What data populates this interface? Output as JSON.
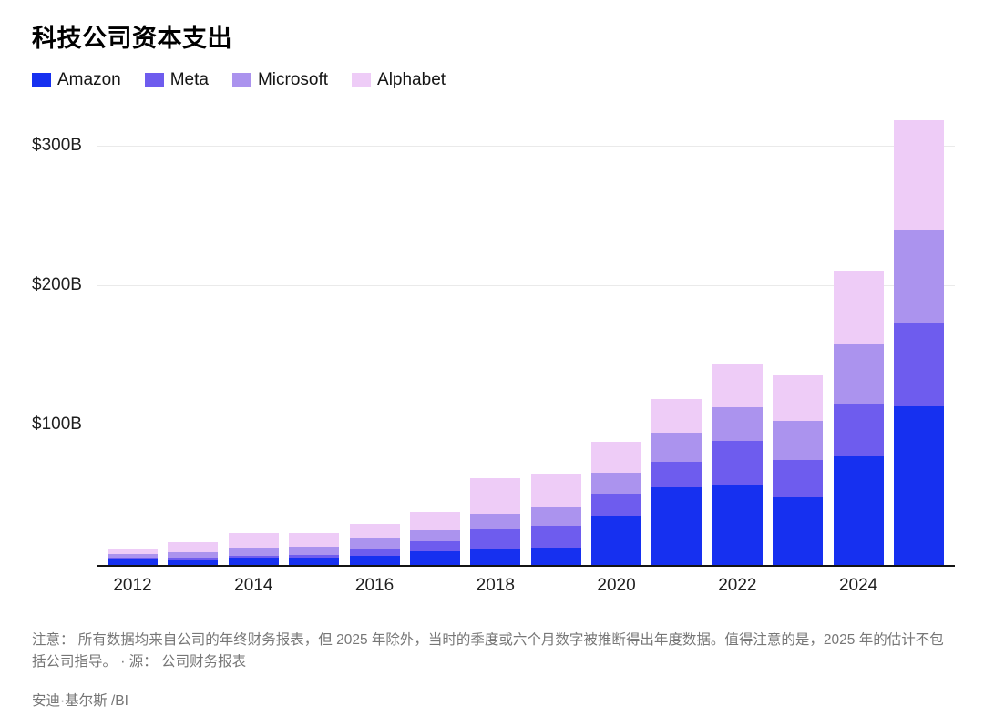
{
  "title": "科技公司资本支出",
  "note": "注意： 所有数据均来自公司的年终财务报表，但 2025 年除外，当时的季度或六个月数字被推断得出年度数据。值得注意的是，2025 年的估计不包括公司指导。 · 源： 公司财务报表",
  "credit": "安迪·基尔斯 /BI",
  "colors": {
    "background": "#ffffff",
    "axis": "#141414",
    "gridline": "#eaeaea",
    "tick_text": "#1f1f1f",
    "muted_text": "#767676"
  },
  "chart_data": {
    "type": "bar",
    "stacked": true,
    "title": "科技公司资本支出",
    "unit": "$B (billions USD)",
    "categories": [
      "2012",
      "2013",
      "2014",
      "2015",
      "2016",
      "2017",
      "2018",
      "2019",
      "2020",
      "2021",
      "2022",
      "2023",
      "2024",
      "2025"
    ],
    "series": [
      {
        "name": "Amazon",
        "color": "#1630f0",
        "values": [
          3.8,
          3.4,
          4.9,
          4.6,
          6.7,
          10.1,
          11.3,
          12.7,
          35.0,
          55.4,
          57.8,
          48.1,
          78.3,
          114.0
        ]
      },
      {
        "name": "Meta",
        "color": "#6e5cee",
        "values": [
          1.6,
          1.4,
          1.8,
          2.5,
          4.5,
          6.7,
          13.9,
          15.1,
          15.7,
          18.6,
          31.4,
          27.3,
          37.3,
          60.0
        ]
      },
      {
        "name": "Microsoft",
        "color": "#ab93ee",
        "values": [
          2.3,
          4.3,
          5.5,
          5.9,
          8.3,
          8.1,
          11.6,
          13.9,
          15.4,
          20.6,
          23.9,
          28.1,
          42.5,
          66.0
        ]
      },
      {
        "name": "Alphabet",
        "color": "#eeccf7",
        "values": [
          3.3,
          7.4,
          11.0,
          9.9,
          10.2,
          13.2,
          25.1,
          23.5,
          22.3,
          24.6,
          31.5,
          32.3,
          52.5,
          79.0
        ]
      }
    ],
    "y_ticks": [
      {
        "value": 100,
        "label": "$100B"
      },
      {
        "value": 200,
        "label": "$200B"
      },
      {
        "value": 300,
        "label": "$300B"
      }
    ],
    "x_tick_labels": [
      "2012",
      "2014",
      "2016",
      "2018",
      "2020",
      "2022",
      "2024"
    ],
    "ylim": [
      0,
      328
    ],
    "grid": "horizontal",
    "legend_position": "top-left"
  }
}
